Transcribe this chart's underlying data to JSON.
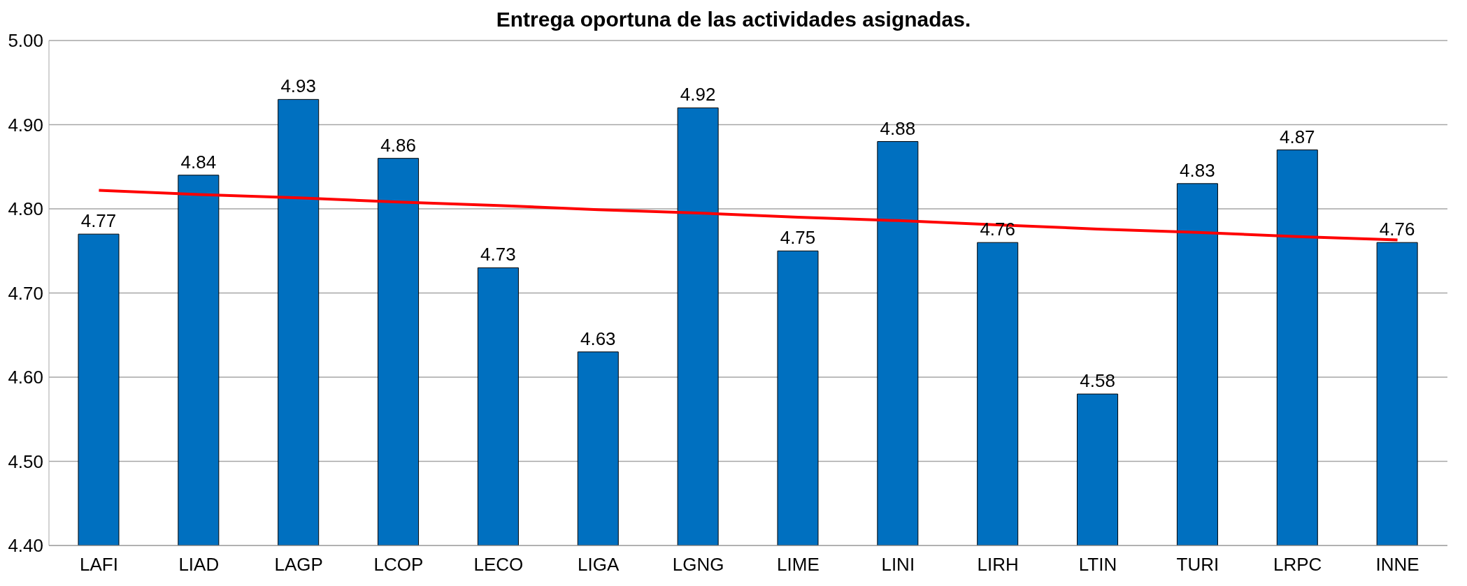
{
  "chart_data": {
    "type": "bar",
    "title": "Entrega oportuna de las actividades asignadas.",
    "categories": [
      "LAFI",
      "LIAD",
      "LAGP",
      "LCOP",
      "LECO",
      "LIGA",
      "LGNG",
      "LIME",
      "LINI",
      "LIRH",
      "LTIN",
      "TURI",
      "LRPC",
      "INNE"
    ],
    "series": [
      {
        "color": "#0070c0",
        "values": [
          4.77,
          4.84,
          4.93,
          4.86,
          4.73,
          4.63,
          4.92,
          4.75,
          4.88,
          4.76,
          4.58,
          4.83,
          4.87,
          4.76
        ],
        "value_labels": [
          "4.77",
          "4.84",
          "4.93",
          "4.86",
          "4.73",
          "4.63",
          "4.92",
          "4.75",
          "4.88",
          "4.76",
          "4.58",
          "4.83",
          "4.87",
          "4.76"
        ]
      },
      {
        "type": "line",
        "color": "#ff0000",
        "values": [
          4.822,
          4.817,
          4.813,
          4.808,
          4.804,
          4.799,
          4.795,
          4.79,
          4.786,
          4.781,
          4.776,
          4.772,
          4.767,
          4.763
        ]
      }
    ],
    "ylim": [
      4.4,
      5.0
    ],
    "yticks": [
      {
        "value": 4.4,
        "label": "4.40"
      },
      {
        "value": 4.5,
        "label": "4.50"
      },
      {
        "value": 4.6,
        "label": "4.60"
      },
      {
        "value": 4.7,
        "label": "4.70"
      },
      {
        "value": 4.8,
        "label": "4.80"
      },
      {
        "value": 4.9,
        "label": "4.90"
      },
      {
        "value": 5.0,
        "label": "5.00"
      }
    ],
    "grid": "y",
    "legend": false
  }
}
